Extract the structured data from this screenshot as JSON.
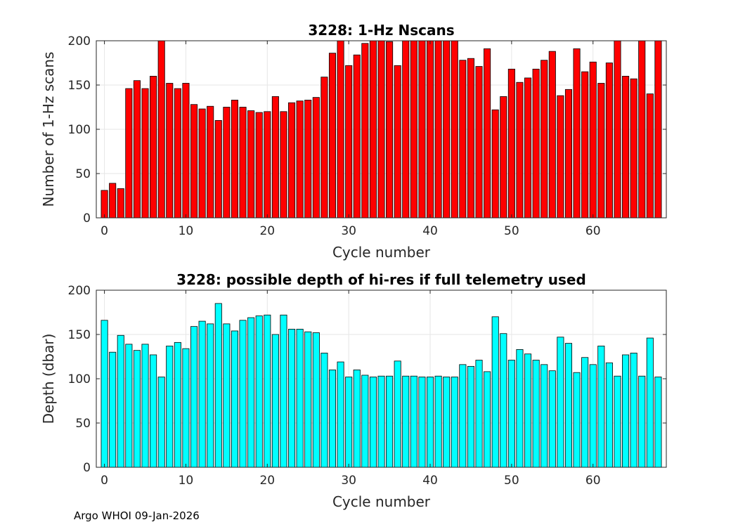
{
  "footer": {
    "text": "Argo WHOI 09-Jan-2026"
  },
  "chart_data": [
    {
      "type": "bar",
      "title": "3228: 1-Hz Nscans",
      "xlabel": "Cycle number",
      "ylabel": "Number of 1-Hz scans",
      "xlim": [
        -1,
        69
      ],
      "ylim": [
        0,
        200
      ],
      "xticks": [
        "0",
        "10",
        "20",
        "30",
        "40",
        "50",
        "60"
      ],
      "yticks": [
        "0",
        "50",
        "100",
        "150",
        "200"
      ],
      "grid": true,
      "bar_color": "#ff0000",
      "x": [
        0,
        1,
        2,
        3,
        4,
        5,
        6,
        7,
        8,
        9,
        10,
        11,
        12,
        13,
        14,
        15,
        16,
        17,
        18,
        19,
        20,
        21,
        22,
        23,
        24,
        25,
        26,
        27,
        28,
        29,
        30,
        31,
        32,
        33,
        34,
        35,
        36,
        37,
        38,
        39,
        40,
        41,
        42,
        43,
        44,
        45,
        46,
        47,
        48,
        49,
        50,
        51,
        52,
        53,
        54,
        55,
        56,
        57,
        58,
        59,
        60,
        61,
        62,
        63,
        64,
        65,
        66,
        67,
        68
      ],
      "values": [
        31,
        39,
        33,
        146,
        155,
        146,
        160,
        200,
        152,
        146,
        152,
        128,
        123,
        126,
        110,
        125,
        133,
        125,
        121,
        119,
        120,
        137,
        120,
        130,
        132,
        133,
        136,
        159,
        186,
        200,
        172,
        184,
        197,
        200,
        200,
        199,
        172,
        200,
        200,
        200,
        200,
        200,
        200,
        200,
        178,
        180,
        171,
        191,
        122,
        137,
        168,
        153,
        158,
        168,
        178,
        188,
        138,
        145,
        191,
        165,
        176,
        152,
        175,
        200,
        160,
        157,
        200,
        140,
        200
      ]
    },
    {
      "type": "bar",
      "title": "3228: possible depth of hi-res if full telemetry used",
      "xlabel": "Cycle number",
      "ylabel": "Depth (dbar)",
      "xlim": [
        -1,
        69
      ],
      "ylim": [
        0,
        200
      ],
      "xticks": [
        "0",
        "10",
        "20",
        "30",
        "40",
        "50",
        "60"
      ],
      "yticks": [
        "0",
        "50",
        "100",
        "150",
        "200"
      ],
      "grid": true,
      "bar_color": "#00ffff",
      "x": [
        0,
        1,
        2,
        3,
        4,
        5,
        6,
        7,
        8,
        9,
        10,
        11,
        12,
        13,
        14,
        15,
        16,
        17,
        18,
        19,
        20,
        21,
        22,
        23,
        24,
        25,
        26,
        27,
        28,
        29,
        30,
        31,
        32,
        33,
        34,
        35,
        36,
        37,
        38,
        39,
        40,
        41,
        42,
        43,
        44,
        45,
        46,
        47,
        48,
        49,
        50,
        51,
        52,
        53,
        54,
        55,
        56,
        57,
        58,
        59,
        60,
        61,
        62,
        63,
        64,
        65,
        66,
        67,
        68
      ],
      "values": [
        166,
        130,
        149,
        139,
        132,
        139,
        127,
        102,
        137,
        141,
        134,
        159,
        165,
        162,
        185,
        162,
        154,
        166,
        169,
        171,
        172,
        150,
        172,
        156,
        156,
        153,
        152,
        129,
        110,
        119,
        102,
        110,
        104,
        102,
        103,
        103,
        120,
        103,
        103,
        102,
        102,
        103,
        102,
        102,
        116,
        114,
        121,
        108,
        170,
        151,
        121,
        133,
        128,
        121,
        116,
        109,
        147,
        140,
        107,
        124,
        116,
        137,
        118,
        103,
        127,
        129,
        103,
        146,
        102
      ]
    }
  ]
}
